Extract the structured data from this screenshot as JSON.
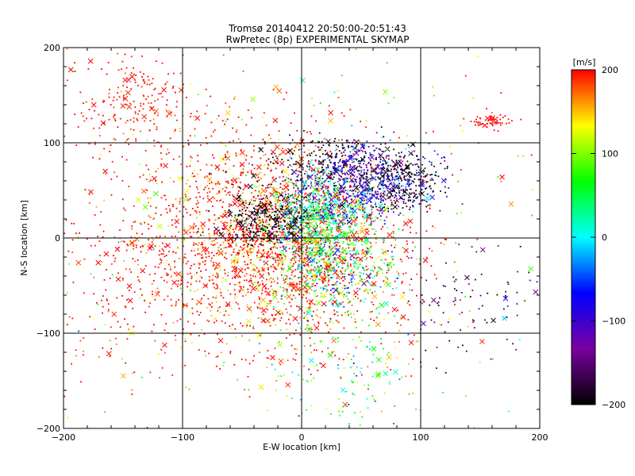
{
  "header": {
    "line1": "Tromsø 20140412 20:50:00-20:51:43",
    "line2": "RwPretec (8p) EXPERIMENTAL SKYMAP"
  },
  "chart_data": {
    "type": "scatter",
    "xlabel": "E-W location [km]",
    "ylabel": "N-S location [km]",
    "xlim": [
      -200,
      200
    ],
    "ylim": [
      -200,
      200
    ],
    "x_ticks": [
      -200,
      -100,
      0,
      100,
      200
    ],
    "y_ticks": [
      -200,
      -100,
      0,
      100,
      200
    ],
    "grid": true,
    "colorbar": {
      "label": "[m/s]",
      "range": [
        -200,
        200
      ],
      "ticks": [
        200,
        100,
        0,
        -100,
        -200
      ],
      "colors": [
        "#000000",
        "#7a00a0",
        "#0000ff",
        "#00ffff",
        "#00ff00",
        "#ffff00",
        "#ff0000"
      ]
    },
    "clusters": [
      {
        "cx": -25,
        "cy": -5,
        "sx": 55,
        "sy": 55,
        "n": 2400,
        "v": 200,
        "vs": 50
      },
      {
        "cx": -140,
        "cy": 140,
        "sx": 30,
        "sy": 30,
        "n": 220,
        "v": 200,
        "vs": 15
      },
      {
        "cx": 15,
        "cy": 20,
        "sx": 22,
        "sy": 22,
        "n": 800,
        "v": 40,
        "vs": 60
      },
      {
        "cx": 50,
        "cy": 60,
        "sx": 28,
        "sy": 18,
        "n": 650,
        "v": -100,
        "vs": 50
      },
      {
        "cx": 20,
        "cy": 85,
        "sx": 30,
        "sy": 12,
        "n": 150,
        "v": -190,
        "vs": 15
      },
      {
        "cx": 85,
        "cy": 60,
        "sx": 15,
        "sy": 15,
        "n": 220,
        "v": -190,
        "vs": 15
      },
      {
        "cx": -30,
        "cy": 20,
        "sx": 20,
        "sy": 15,
        "n": 300,
        "v": -190,
        "vs": 15
      },
      {
        "cx": 30,
        "cy": -40,
        "sx": 25,
        "sy": 20,
        "n": 350,
        "v": 40,
        "vs": 80
      },
      {
        "cx": 140,
        "cy": -60,
        "sx": 30,
        "sy": 30,
        "n": 90,
        "v": -160,
        "vs": 35
      },
      {
        "cx": 160,
        "cy": 122,
        "sx": 9,
        "sy": 3,
        "n": 60,
        "v": 200,
        "vs": 5
      },
      {
        "cx": 40,
        "cy": -150,
        "sx": 30,
        "sy": 30,
        "n": 140,
        "v": 60,
        "vs": 70
      },
      {
        "cx": -150,
        "cy": -40,
        "sx": 30,
        "sy": 60,
        "n": 160,
        "v": 200,
        "vs": 20
      },
      {
        "cx": 0,
        "cy": 0,
        "sx": 110,
        "sy": 110,
        "n": 320,
        "v": 150,
        "vs": 80
      }
    ]
  }
}
